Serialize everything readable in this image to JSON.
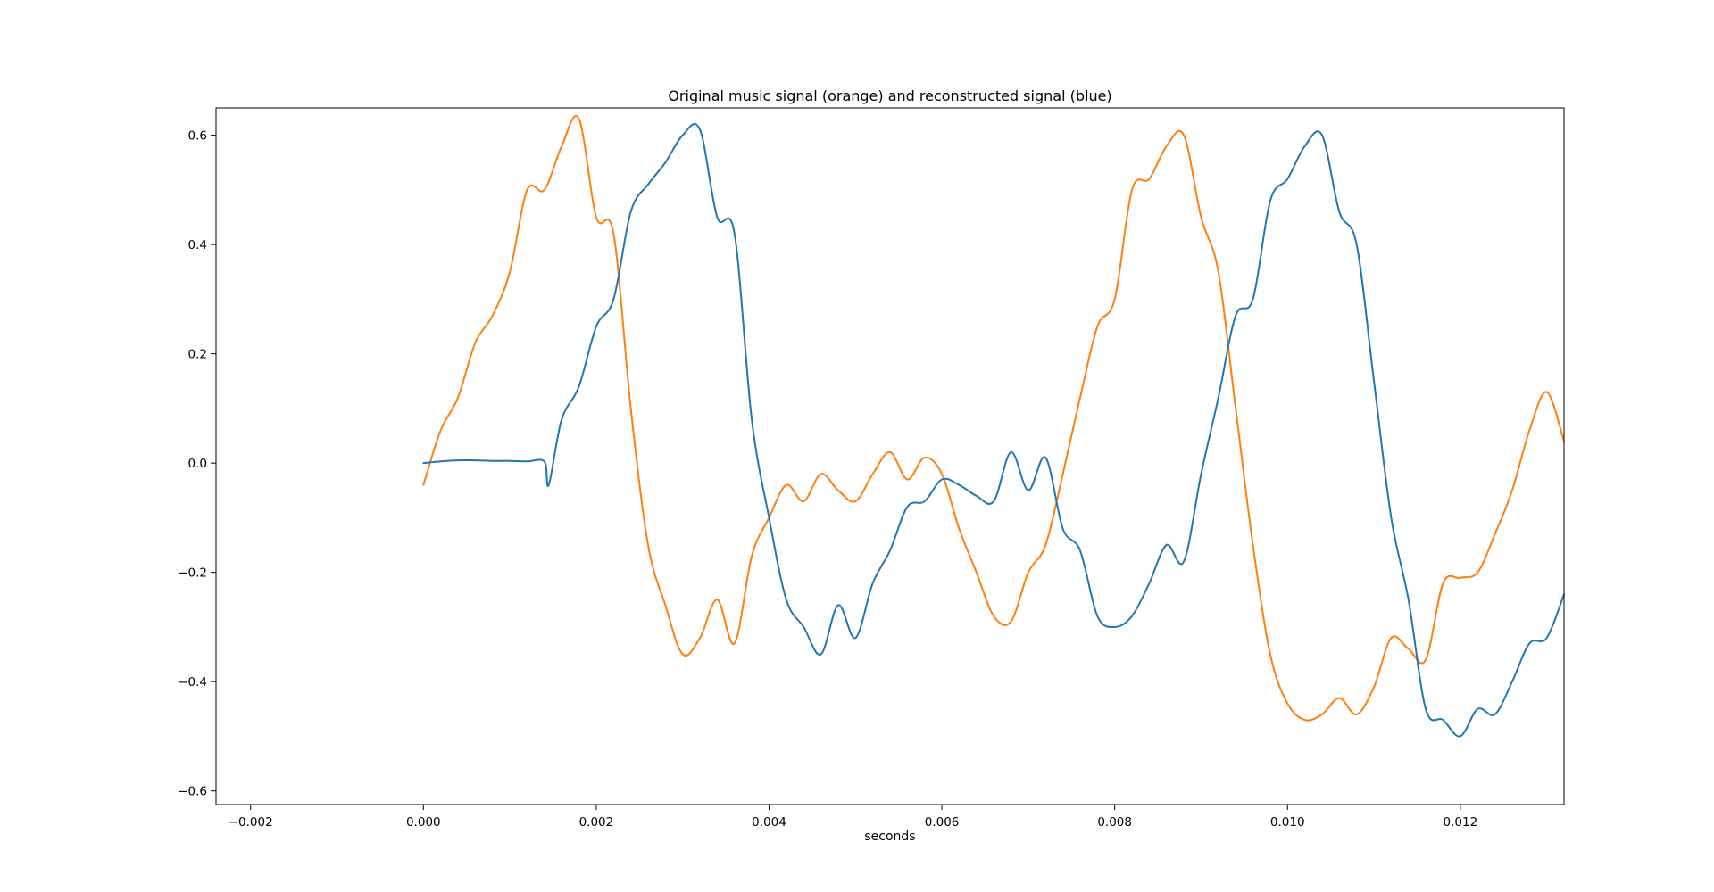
{
  "chart_data": {
    "type": "line",
    "title": "Original music signal (orange) and reconstructed signal (blue)",
    "xlabel": "seconds",
    "ylabel": "",
    "xlim": [
      -0.0024,
      0.0132
    ],
    "ylim": [
      -0.625,
      0.65
    ],
    "xticks": [
      -0.002,
      0.0,
      0.002,
      0.004,
      0.006,
      0.008,
      0.01,
      0.012
    ],
    "xtick_labels": [
      "−0.002",
      "0.000",
      "0.002",
      "0.004",
      "0.006",
      "0.008",
      "0.010",
      "0.012"
    ],
    "yticks": [
      0.6,
      0.4,
      0.2,
      0.0,
      -0.2,
      -0.4,
      -0.6
    ],
    "ytick_labels": [
      "0.6",
      "0.4",
      "0.2",
      "0.0",
      "−0.2",
      "−0.4",
      "−0.6"
    ],
    "grid": false,
    "series": [
      {
        "color": "#ff7f0e",
        "x": [
          0.0,
          0.0002,
          0.0004,
          0.0006,
          0.0008,
          0.001,
          0.0012,
          0.0014,
          0.0016,
          0.0018,
          0.002,
          0.0022,
          0.0024,
          0.0026,
          0.0028,
          0.003,
          0.0032,
          0.0034,
          0.0036,
          0.0038,
          0.004,
          0.0042,
          0.0044,
          0.0046,
          0.0048,
          0.005,
          0.0052,
          0.0054,
          0.0056,
          0.0058,
          0.006,
          0.0062,
          0.0064,
          0.0066,
          0.0068,
          0.007,
          0.0072,
          0.0074,
          0.0076,
          0.0078,
          0.008,
          0.0082,
          0.0084,
          0.0086,
          0.0088,
          0.009,
          0.0092,
          0.0094,
          0.0096,
          0.0098,
          0.01,
          0.0102,
          0.0104,
          0.0106,
          0.0108,
          0.011,
          0.0112,
          0.0114,
          0.0116,
          0.0118,
          0.012,
          0.0122,
          0.0124,
          0.0126,
          0.0128,
          0.013,
          0.0132
        ],
        "y": [
          -0.04,
          0.06,
          0.12,
          0.22,
          0.27,
          0.35,
          0.5,
          0.5,
          0.58,
          0.63,
          0.45,
          0.42,
          0.1,
          -0.15,
          -0.26,
          -0.35,
          -0.32,
          -0.25,
          -0.33,
          -0.17,
          -0.1,
          -0.04,
          -0.07,
          -0.02,
          -0.05,
          -0.07,
          -0.02,
          0.02,
          -0.03,
          0.01,
          -0.02,
          -0.12,
          -0.2,
          -0.28,
          -0.29,
          -0.2,
          -0.15,
          -0.02,
          0.12,
          0.25,
          0.3,
          0.5,
          0.52,
          0.58,
          0.6,
          0.45,
          0.35,
          0.1,
          -0.15,
          -0.35,
          -0.44,
          -0.47,
          -0.46,
          -0.43,
          -0.46,
          -0.41,
          -0.32,
          -0.34,
          -0.36,
          -0.22,
          -0.21,
          -0.2,
          -0.13,
          -0.05,
          0.06,
          0.13,
          0.04
        ]
      },
      {
        "color": "#1f77b4",
        "x": [
          0.0,
          0.0002,
          0.0004,
          0.0006,
          0.0008,
          0.001,
          0.0012,
          0.0014,
          0.00145,
          0.0016,
          0.0018,
          0.002,
          0.0022,
          0.0024,
          0.0026,
          0.0028,
          0.003,
          0.0032,
          0.0034,
          0.0036,
          0.0038,
          0.004,
          0.0042,
          0.0044,
          0.0046,
          0.0048,
          0.005,
          0.0052,
          0.0054,
          0.0056,
          0.0058,
          0.006,
          0.0062,
          0.0064,
          0.0066,
          0.0068,
          0.007,
          0.0072,
          0.0074,
          0.0076,
          0.0078,
          0.008,
          0.0082,
          0.0084,
          0.0086,
          0.0088,
          0.009,
          0.0092,
          0.0094,
          0.0096,
          0.0098,
          0.01,
          0.0102,
          0.0104,
          0.0106,
          0.0108,
          0.011,
          0.0112,
          0.0114,
          0.0116,
          0.0118,
          0.012,
          0.0122,
          0.0124,
          0.0126,
          0.0128,
          0.013,
          0.0132
        ],
        "y": [
          0.0,
          0.003,
          0.005,
          0.005,
          0.004,
          0.004,
          0.003,
          0.003,
          -0.04,
          0.08,
          0.14,
          0.25,
          0.3,
          0.46,
          0.51,
          0.55,
          0.6,
          0.61,
          0.45,
          0.42,
          0.08,
          -0.1,
          -0.25,
          -0.3,
          -0.35,
          -0.26,
          -0.32,
          -0.22,
          -0.16,
          -0.08,
          -0.07,
          -0.03,
          -0.04,
          -0.06,
          -0.07,
          0.02,
          -0.05,
          0.01,
          -0.12,
          -0.16,
          -0.28,
          -0.3,
          -0.28,
          -0.22,
          -0.15,
          -0.18,
          -0.02,
          0.12,
          0.27,
          0.3,
          0.48,
          0.52,
          0.58,
          0.6,
          0.46,
          0.4,
          0.15,
          -0.1,
          -0.25,
          -0.45,
          -0.47,
          -0.5,
          -0.45,
          -0.46,
          -0.4,
          -0.33,
          -0.32,
          -0.24
        ]
      }
    ]
  }
}
